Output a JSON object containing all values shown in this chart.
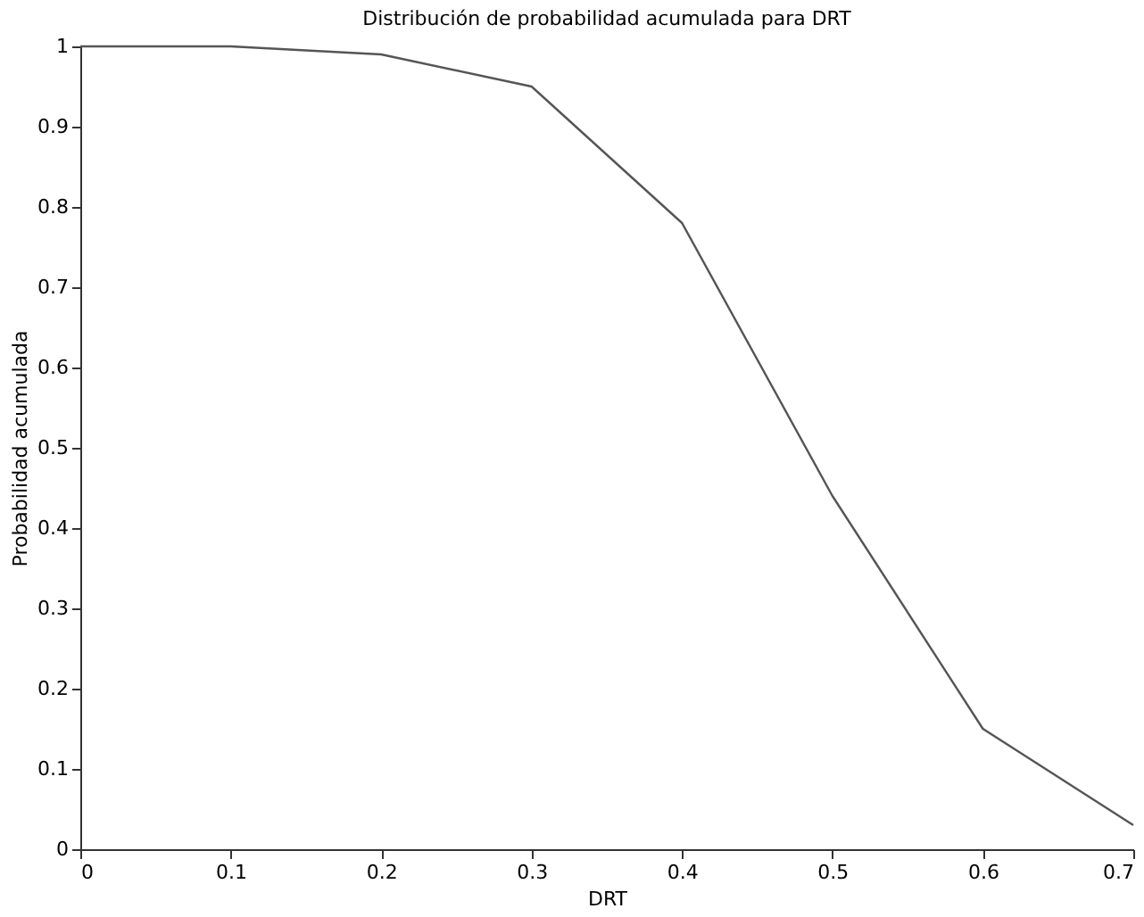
{
  "chart_data": {
    "type": "line",
    "title": "Distribución de probabilidad acumulada para DRT",
    "xlabel": "DRT",
    "ylabel": "Probabilidad acumulada",
    "x": [
      0,
      0.1,
      0.2,
      0.3,
      0.4,
      0.5,
      0.6,
      0.7
    ],
    "series": [
      {
        "color": "#555555",
        "values": [
          1,
          1,
          0.99,
          0.95,
          0.78,
          0.44,
          0.15,
          0.03
        ]
      }
    ],
    "xlim": [
      0,
      0.7
    ],
    "xticks": [
      0,
      0.1,
      0.2,
      0.3,
      0.4,
      0.5,
      0.6,
      0.7
    ],
    "ylim": [
      0,
      1
    ],
    "yticks": [
      0,
      0.1,
      0.2,
      0.3,
      0.4,
      0.5,
      0.6,
      0.7,
      0.8,
      0.9,
      1
    ],
    "grid": false,
    "line_style": "solid"
  }
}
